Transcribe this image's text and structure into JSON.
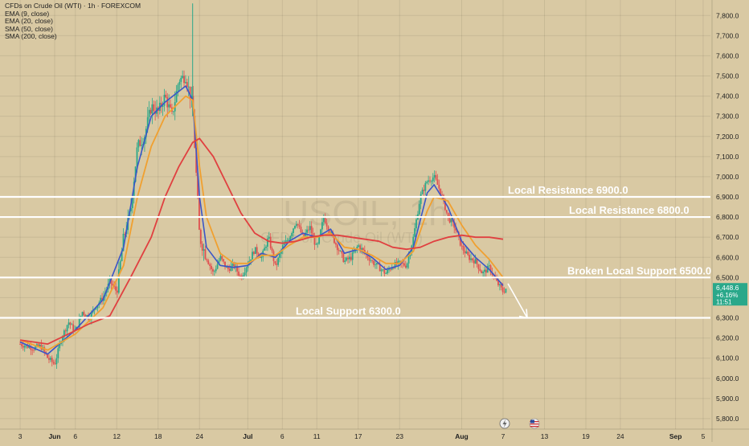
{
  "header": {
    "symbol_line": "CFDs on Crude Oil (WTI) · 1h · FOREXCOM",
    "indicators": [
      "EMA (9, close)",
      "EMA (20, close)",
      "SMA (50, close)",
      "SMA (200, close)"
    ]
  },
  "watermark": {
    "ticker": "USOIL, 1h",
    "name": "CFDs on Crude Oil (WTI)"
  },
  "colors": {
    "background": "#d9c9a3",
    "ema9": "#3a55c8",
    "ema20": "#f0a030",
    "sma50": "#e04040",
    "candle_up": "#2aa88a",
    "candle_down": "#e05050",
    "level_line": "#ffffff",
    "price_badge": "#2aa88a"
  },
  "chart_data": {
    "type": "line",
    "title": "CFDs on Crude Oil (WTI) · 1h · FOREXCOM",
    "ylim": [
      5800,
      7900
    ],
    "y_ticks": [
      "5,800.0",
      "5,900.0",
      "6,000.0",
      "6,100.0",
      "6,200.0",
      "6,300.0",
      "6,400.0",
      "6,500.0",
      "6,600.0",
      "6,700.0",
      "6,800.0",
      "6,900.0",
      "7,000.0",
      "7,100.0",
      "7,200.0",
      "7,300.0",
      "7,400.0",
      "7,500.0",
      "7,600.0",
      "7,700.0",
      "7,800.0"
    ],
    "y_tick_values": [
      5800,
      5900,
      6000,
      6100,
      6200,
      6300,
      6400,
      6500,
      6600,
      6700,
      6800,
      6900,
      7000,
      7100,
      7200,
      7300,
      7400,
      7500,
      7600,
      7700,
      7800
    ],
    "x_ticks": [
      {
        "label": "3",
        "day": 0
      },
      {
        "label": "Jun",
        "day": 5
      },
      {
        "label": "6",
        "day": 8
      },
      {
        "label": "12",
        "day": 14
      },
      {
        "label": "18",
        "day": 20
      },
      {
        "label": "24",
        "day": 26
      },
      {
        "label": "Jul",
        "day": 33
      },
      {
        "label": "6",
        "day": 38
      },
      {
        "label": "11",
        "day": 43
      },
      {
        "label": "17",
        "day": 49
      },
      {
        "label": "23",
        "day": 55
      },
      {
        "label": "Aug",
        "day": 64
      },
      {
        "label": "7",
        "day": 70
      },
      {
        "label": "13",
        "day": 76
      },
      {
        "label": "19",
        "day": 82
      },
      {
        "label": "24",
        "day": 87
      },
      {
        "label": "Sep",
        "day": 95
      },
      {
        "label": "5",
        "day": 99
      }
    ],
    "price_series": {
      "name": "Price",
      "points": [
        [
          0,
          6170
        ],
        [
          2,
          6150
        ],
        [
          3,
          6160
        ],
        [
          4,
          6100
        ],
        [
          5,
          6070
        ],
        [
          6,
          6200
        ],
        [
          7,
          6280
        ],
        [
          8,
          6230
        ],
        [
          9,
          6330
        ],
        [
          10,
          6300
        ],
        [
          11,
          6360
        ],
        [
          12,
          6400
        ],
        [
          13,
          6480
        ],
        [
          14,
          6430
        ],
        [
          15,
          6700
        ],
        [
          16,
          6830
        ],
        [
          17,
          7150
        ],
        [
          18,
          7200
        ],
        [
          19,
          7350
        ],
        [
          20,
          7320
        ],
        [
          21,
          7400
        ],
        [
          22,
          7300
        ],
        [
          23,
          7480
        ],
        [
          24,
          7500
        ],
        [
          25,
          7350
        ],
        [
          26,
          6700
        ],
        [
          27,
          6600
        ],
        [
          28,
          6520
        ],
        [
          29,
          6600
        ],
        [
          30,
          6540
        ],
        [
          31,
          6560
        ],
        [
          32,
          6500
        ],
        [
          33,
          6570
        ],
        [
          34,
          6640
        ],
        [
          35,
          6600
        ],
        [
          36,
          6700
        ],
        [
          37,
          6550
        ],
        [
          38,
          6650
        ],
        [
          39,
          6700
        ],
        [
          40,
          6780
        ],
        [
          41,
          6700
        ],
        [
          42,
          6750
        ],
        [
          43,
          6640
        ],
        [
          44,
          6800
        ],
        [
          45,
          6720
        ],
        [
          46,
          6650
        ],
        [
          47,
          6580
        ],
        [
          48,
          6600
        ],
        [
          49,
          6660
        ],
        [
          50,
          6620
        ],
        [
          51,
          6580
        ],
        [
          52,
          6550
        ],
        [
          53,
          6520
        ],
        [
          54,
          6560
        ],
        [
          55,
          6570
        ],
        [
          56,
          6560
        ],
        [
          57,
          6700
        ],
        [
          58,
          6900
        ],
        [
          59,
          6980
        ],
        [
          60,
          7000
        ],
        [
          61,
          6920
        ],
        [
          62,
          6800
        ],
        [
          63,
          6750
        ],
        [
          64,
          6650
        ],
        [
          65,
          6600
        ],
        [
          66,
          6580
        ],
        [
          67,
          6520
        ],
        [
          68,
          6550
        ],
        [
          69,
          6480
        ],
        [
          70,
          6430
        ],
        [
          70.5,
          6448.6
        ]
      ]
    },
    "series": [
      {
        "name": "EMA (9, close)",
        "points": [
          [
            0,
            6180
          ],
          [
            4,
            6120
          ],
          [
            8,
            6240
          ],
          [
            12,
            6390
          ],
          [
            15,
            6650
          ],
          [
            17,
            7050
          ],
          [
            19,
            7300
          ],
          [
            21,
            7370
          ],
          [
            24,
            7450
          ],
          [
            25,
            7380
          ],
          [
            26,
            6900
          ],
          [
            27,
            6650
          ],
          [
            29,
            6560
          ],
          [
            31,
            6550
          ],
          [
            33,
            6560
          ],
          [
            35,
            6620
          ],
          [
            37,
            6600
          ],
          [
            39,
            6680
          ],
          [
            41,
            6720
          ],
          [
            43,
            6700
          ],
          [
            45,
            6740
          ],
          [
            47,
            6620
          ],
          [
            49,
            6640
          ],
          [
            51,
            6600
          ],
          [
            53,
            6540
          ],
          [
            55,
            6560
          ],
          [
            57,
            6650
          ],
          [
            59,
            6920
          ],
          [
            60,
            6960
          ],
          [
            62,
            6850
          ],
          [
            64,
            6680
          ],
          [
            66,
            6600
          ],
          [
            68,
            6540
          ],
          [
            70,
            6460
          ]
        ]
      },
      {
        "name": "EMA (20, close)",
        "points": [
          [
            0,
            6190
          ],
          [
            4,
            6140
          ],
          [
            8,
            6220
          ],
          [
            12,
            6350
          ],
          [
            15,
            6560
          ],
          [
            17,
            6900
          ],
          [
            19,
            7150
          ],
          [
            21,
            7300
          ],
          [
            24,
            7400
          ],
          [
            25,
            7380
          ],
          [
            26,
            7050
          ],
          [
            27,
            6800
          ],
          [
            29,
            6620
          ],
          [
            31,
            6570
          ],
          [
            33,
            6570
          ],
          [
            35,
            6610
          ],
          [
            37,
            6610
          ],
          [
            39,
            6660
          ],
          [
            41,
            6700
          ],
          [
            43,
            6700
          ],
          [
            45,
            6720
          ],
          [
            47,
            6650
          ],
          [
            49,
            6640
          ],
          [
            51,
            6610
          ],
          [
            53,
            6570
          ],
          [
            55,
            6570
          ],
          [
            57,
            6630
          ],
          [
            59,
            6830
          ],
          [
            60,
            6900
          ],
          [
            62,
            6880
          ],
          [
            64,
            6760
          ],
          [
            66,
            6660
          ],
          [
            68,
            6590
          ],
          [
            70,
            6500
          ]
        ]
      },
      {
        "name": "SMA (50, close)",
        "points": [
          [
            0,
            6190
          ],
          [
            4,
            6170
          ],
          [
            7,
            6220
          ],
          [
            10,
            6270
          ],
          [
            13,
            6310
          ],
          [
            16,
            6500
          ],
          [
            19,
            6700
          ],
          [
            21,
            6900
          ],
          [
            23,
            7050
          ],
          [
            25,
            7170
          ],
          [
            26,
            7190
          ],
          [
            28,
            7100
          ],
          [
            30,
            6960
          ],
          [
            32,
            6820
          ],
          [
            34,
            6720
          ],
          [
            36,
            6680
          ],
          [
            38,
            6670
          ],
          [
            40,
            6680
          ],
          [
            42,
            6700
          ],
          [
            44,
            6710
          ],
          [
            46,
            6710
          ],
          [
            48,
            6700
          ],
          [
            50,
            6690
          ],
          [
            52,
            6680
          ],
          [
            54,
            6650
          ],
          [
            56,
            6640
          ],
          [
            58,
            6650
          ],
          [
            60,
            6680
          ],
          [
            62,
            6700
          ],
          [
            64,
            6710
          ],
          [
            66,
            6700
          ],
          [
            68,
            6700
          ],
          [
            70,
            6690
          ]
        ]
      }
    ],
    "levels": [
      {
        "label": "Local Resistance 6900.0",
        "value": 6900,
        "axis_tag": "6,900.0"
      },
      {
        "label": "Local Resistance 6800.0",
        "value": 6800,
        "axis_tag": "6,800.0"
      },
      {
        "label": "Broken Local Support 6500.0",
        "value": 6500,
        "axis_tag": "6,500.0"
      },
      {
        "label": "Local Support 6300.0",
        "value": 6300,
        "axis_tag": "6,300.0"
      }
    ],
    "current_price": {
      "value": 6448.6,
      "label": "6,448.6",
      "change": "+6.16%",
      "countdown": "11:51"
    },
    "arrow": {
      "from_day": 70.7,
      "from_value": 6470,
      "to_day": 73.5,
      "to_value": 6300
    }
  }
}
